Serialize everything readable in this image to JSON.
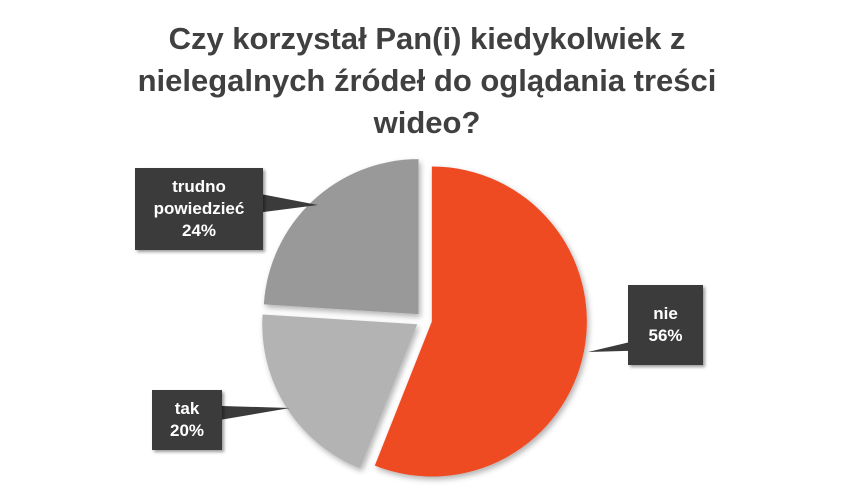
{
  "chart_data": {
    "type": "pie",
    "title": "Czy korzystał Pan(i) kiedykolwiek z nielegalnych źródeł do oglądania treści wideo?",
    "categories": [
      "nie",
      "tak",
      "trudno powiedzieć"
    ],
    "values": [
      56,
      20,
      24
    ],
    "value_labels": [
      "56%",
      "20%",
      "24%"
    ],
    "colors": [
      "#ee4b24",
      "#b3b3b3",
      "#999999"
    ]
  }
}
